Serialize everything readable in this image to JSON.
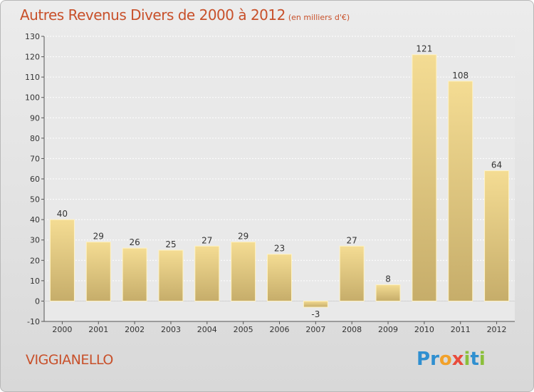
{
  "chart_data": {
    "type": "bar",
    "title": "Autres Revenus Divers de 2000 à 2012",
    "subtitle": "(en milliers d'€)",
    "categories": [
      "2000",
      "2001",
      "2002",
      "2003",
      "2004",
      "2005",
      "2006",
      "2007",
      "2008",
      "2009",
      "2010",
      "2011",
      "2012"
    ],
    "values": [
      40,
      29,
      26,
      25,
      27,
      29,
      23,
      -3,
      27,
      8,
      121,
      108,
      64
    ],
    "ylim": [
      -10,
      130
    ],
    "yticks": [
      -10,
      0,
      10,
      20,
      30,
      40,
      50,
      60,
      70,
      80,
      90,
      100,
      110,
      120,
      130
    ],
    "grid": true,
    "bar_color": "#e8cd7c"
  },
  "footer": {
    "place_name": "VIGGIANELLO",
    "logo_letters": [
      {
        "ch": "P",
        "color": "#2f8fd0"
      },
      {
        "ch": "r",
        "color": "#2f8fd0"
      },
      {
        "ch": "o",
        "color": "#f2a12a"
      },
      {
        "ch": "x",
        "color": "#e94b3c"
      },
      {
        "ch": "i",
        "color": "#8bbf3a"
      },
      {
        "ch": "t",
        "color": "#2f8fd0"
      },
      {
        "ch": "i",
        "color": "#8bbf3a"
      }
    ]
  }
}
